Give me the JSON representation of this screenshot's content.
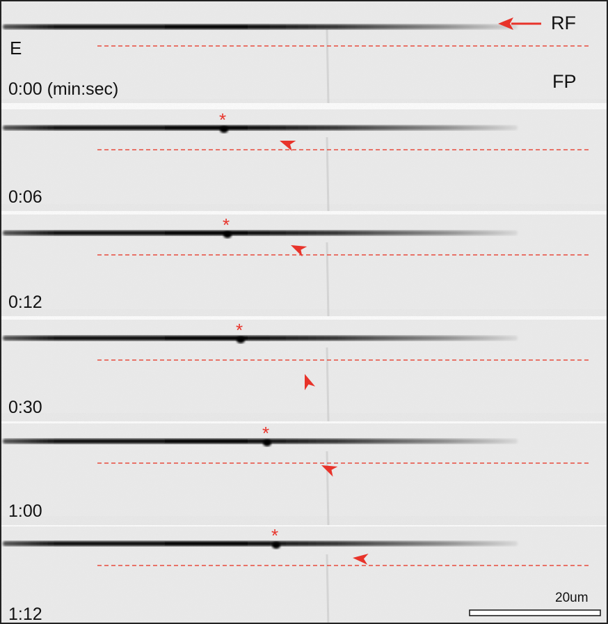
{
  "panel_label": "E",
  "labels": {
    "rf": "RF",
    "fp": "FP"
  },
  "frames": [
    {
      "time": "0:00 (min:sec)"
    },
    {
      "time": "0:06",
      "marker": "*"
    },
    {
      "time": "0:12",
      "marker": "*"
    },
    {
      "time": "0:30",
      "marker": "*"
    },
    {
      "time": "1:00",
      "marker": "*"
    },
    {
      "time": "1:12",
      "marker": "*"
    }
  ],
  "scale_bar": "20um"
}
